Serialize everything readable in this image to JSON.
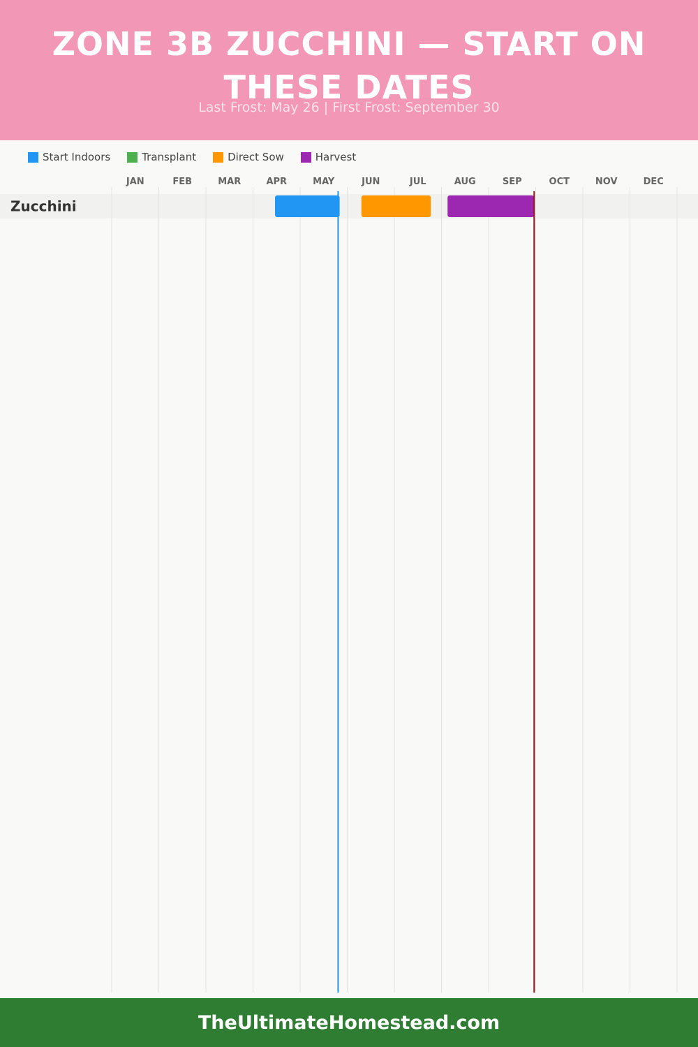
{
  "header": {
    "title": "Zone 3b Zucchini — Start on These Dates",
    "subtitle": "Last Frost: May 26 | First Frost: September 30"
  },
  "colors": {
    "header_bg": "#f297b5",
    "footer_bg": "#2e7d32",
    "start_indoors": "#2196f3",
    "transplant": "#4caf50",
    "direct_sow": "#ff9800",
    "harvest": "#9c27b0",
    "last_frost_line": "#2196f3",
    "first_frost_line": "#8b1a1a"
  },
  "legend": [
    {
      "label": "Start Indoors",
      "color": "#2196f3"
    },
    {
      "label": "Transplant",
      "color": "#4caf50"
    },
    {
      "label": "Direct Sow",
      "color": "#ff9800"
    },
    {
      "label": "Harvest",
      "color": "#9c27b0"
    }
  ],
  "chart_data": {
    "type": "gantt",
    "months": [
      "JAN",
      "FEB",
      "MAR",
      "APR",
      "MAY",
      "JUN",
      "JUL",
      "AUG",
      "SEP",
      "OCT",
      "NOV",
      "DEC"
    ],
    "rows": [
      {
        "name": "Zucchini",
        "bars": [
          {
            "phase": "Start Indoors",
            "start": "Apr 15",
            "end": "May 27",
            "color": "#2196f3"
          },
          {
            "phase": "Direct Sow",
            "start": "Jun 10",
            "end": "Jul 25",
            "color": "#ff9800"
          },
          {
            "phase": "Harvest",
            "start": "Aug 5",
            "end": "Sep 30",
            "color": "#9c27b0"
          }
        ]
      }
    ],
    "markers": [
      {
        "date": "May 26",
        "color": "#2196f3"
      },
      {
        "date": "Sep 30",
        "color": "#8b1a1a"
      }
    ]
  },
  "footer": {
    "site": "TheUltimateHomestead.com"
  }
}
